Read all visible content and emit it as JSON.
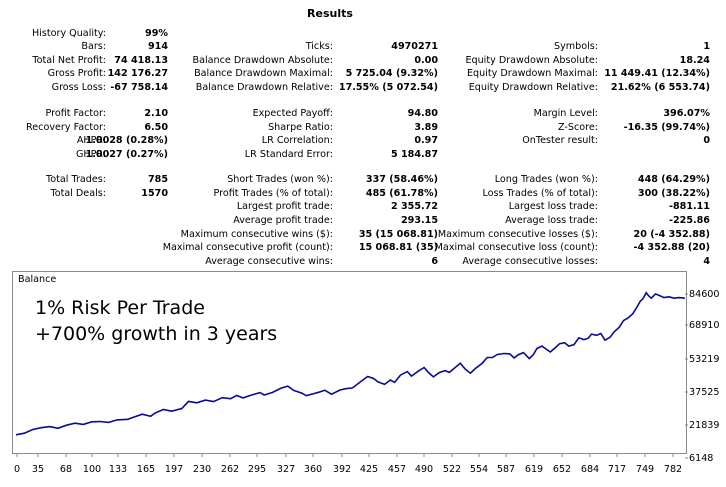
{
  "report": {
    "title": "Results",
    "col1": [
      {
        "label": "History Quality:",
        "value": "99%"
      },
      {
        "label": "Bars:",
        "value": "914"
      },
      {
        "label": "Total Net Profit:",
        "value": "74 418.13"
      },
      {
        "label": "Gross Profit:",
        "value": "142 176.27"
      },
      {
        "label": "Gross Loss:",
        "value": "-67 758.14"
      },
      {
        "label": "Profit Factor:",
        "value": "2.10"
      },
      {
        "label": "Recovery Factor:",
        "value": "6.50"
      },
      {
        "label": "AHPR:",
        "value": "1.0028 (0.28%)"
      },
      {
        "label": "GHPR:",
        "value": "1.0027 (0.27%)"
      },
      {
        "label": "Total Trades:",
        "value": "785"
      },
      {
        "label": "Total Deals:",
        "value": "1570"
      }
    ],
    "col2": [
      {
        "label": "Ticks:",
        "value": "4970271"
      },
      {
        "label": "Balance Drawdown Absolute:",
        "value": "0.00"
      },
      {
        "label": "Balance Drawdown Maximal:",
        "value": "5 725.04 (9.32%)"
      },
      {
        "label": "Balance Drawdown Relative:",
        "value": "17.55% (5 072.54)"
      },
      {
        "label": "Expected Payoff:",
        "value": "94.80"
      },
      {
        "label": "Sharpe Ratio:",
        "value": "3.89"
      },
      {
        "label": "LR Correlation:",
        "value": "0.97"
      },
      {
        "label": "LR Standard Error:",
        "value": "5 184.87"
      },
      {
        "label": "Short Trades (won %):",
        "value": "337 (58.46%)"
      },
      {
        "label": "Profit Trades (% of total):",
        "value": "485 (61.78%)"
      },
      {
        "label": "Largest profit trade:",
        "value": "2 355.72"
      },
      {
        "label": "Average profit trade:",
        "value": "293.15"
      },
      {
        "label": "Maximum consecutive wins ($):",
        "value": "35 (15 068.81)"
      },
      {
        "label": "Maximal consecutive profit (count):",
        "value": "15 068.81 (35)"
      },
      {
        "label": "Average consecutive wins:",
        "value": "6"
      }
    ],
    "col3": [
      {
        "label": "Symbols:",
        "value": "1"
      },
      {
        "label": "Equity Drawdown Absolute:",
        "value": "18.24"
      },
      {
        "label": "Equity Drawdown Maximal:",
        "value": "11 449.41 (12.34%)"
      },
      {
        "label": "Equity Drawdown Relative:",
        "value": "21.62% (6 553.74)"
      },
      {
        "label": "Margin Level:",
        "value": "396.07%"
      },
      {
        "label": "Z-Score:",
        "value": "-16.35 (99.74%)"
      },
      {
        "label": "OnTester result:",
        "value": "0"
      },
      {
        "label": "Long Trades (won %):",
        "value": "448 (64.29%)"
      },
      {
        "label": "Loss Trades (% of total):",
        "value": "300 (38.22%)"
      },
      {
        "label": "Largest loss trade:",
        "value": "-881.11"
      },
      {
        "label": "Average loss trade:",
        "value": "-225.86"
      },
      {
        "label": "Maximum consecutive losses ($):",
        "value": "20 (-4 352.88)"
      },
      {
        "label": "Maximal consecutive loss (count):",
        "value": "-4 352.88 (20)"
      },
      {
        "label": "Average consecutive losses:",
        "value": "4"
      }
    ]
  },
  "overlay": {
    "line1": "1% Risk Per Trade",
    "line2": "+700% growth in 3 years"
  },
  "chart_data": {
    "type": "line",
    "title": "Balance",
    "color": "#0a0a96",
    "x_ticks": [
      "0",
      "35",
      "68",
      "100",
      "133",
      "165",
      "197",
      "230",
      "262",
      "295",
      "327",
      "360",
      "392",
      "425",
      "457",
      "490",
      "522",
      "554",
      "587",
      "619",
      "652",
      "684",
      "717",
      "749",
      "782"
    ],
    "y_ticks": [
      "84600",
      "68910",
      "53219",
      "37525",
      "21839",
      "6148"
    ],
    "ylim": [
      6148,
      84600
    ],
    "xlim": [
      0,
      800
    ],
    "series": [
      {
        "points": [
          [
            0,
            14400
          ],
          [
            10,
            15200
          ],
          [
            20,
            17100
          ],
          [
            30,
            18000
          ],
          [
            40,
            18600
          ],
          [
            50,
            17700
          ],
          [
            60,
            19300
          ],
          [
            70,
            20300
          ],
          [
            80,
            19700
          ],
          [
            90,
            21000
          ],
          [
            100,
            21200
          ],
          [
            110,
            20700
          ],
          [
            120,
            22000
          ],
          [
            133,
            22300
          ],
          [
            140,
            23400
          ],
          [
            150,
            24900
          ],
          [
            160,
            23800
          ],
          [
            165,
            25400
          ],
          [
            175,
            27300
          ],
          [
            185,
            26400
          ],
          [
            197,
            27800
          ],
          [
            205,
            31400
          ],
          [
            215,
            30700
          ],
          [
            225,
            32100
          ],
          [
            235,
            31300
          ],
          [
            245,
            33300
          ],
          [
            255,
            32800
          ],
          [
            262,
            34400
          ],
          [
            270,
            33200
          ],
          [
            280,
            34700
          ],
          [
            290,
            35900
          ],
          [
            295,
            34700
          ],
          [
            305,
            36000
          ],
          [
            315,
            38200
          ],
          [
            323,
            39200
          ],
          [
            330,
            37000
          ],
          [
            340,
            35600
          ],
          [
            345,
            34300
          ],
          [
            355,
            35500
          ],
          [
            360,
            36100
          ],
          [
            367,
            37100
          ],
          [
            375,
            35100
          ],
          [
            385,
            37200
          ],
          [
            392,
            37900
          ],
          [
            400,
            38300
          ],
          [
            410,
            41600
          ],
          [
            418,
            44100
          ],
          [
            425,
            43100
          ],
          [
            430,
            41400
          ],
          [
            438,
            40100
          ],
          [
            445,
            42300
          ],
          [
            450,
            41100
          ],
          [
            457,
            44800
          ],
          [
            465,
            46600
          ],
          [
            470,
            44300
          ],
          [
            478,
            46800
          ],
          [
            485,
            48700
          ],
          [
            490,
            46200
          ],
          [
            496,
            43900
          ],
          [
            503,
            46100
          ],
          [
            510,
            47100
          ],
          [
            515,
            46200
          ],
          [
            522,
            48700
          ],
          [
            528,
            50800
          ],
          [
            534,
            47800
          ],
          [
            540,
            45800
          ],
          [
            546,
            48200
          ],
          [
            554,
            50800
          ],
          [
            560,
            53800
          ],
          [
            566,
            53800
          ],
          [
            572,
            55300
          ],
          [
            580,
            55800
          ],
          [
            587,
            55600
          ],
          [
            592,
            53500
          ],
          [
            597,
            55200
          ],
          [
            603,
            56300
          ],
          [
            610,
            53200
          ],
          [
            615,
            55300
          ],
          [
            619,
            58300
          ],
          [
            625,
            59600
          ],
          [
            630,
            58100
          ],
          [
            635,
            56600
          ],
          [
            641,
            58800
          ],
          [
            646,
            60800
          ],
          [
            652,
            61300
          ],
          [
            657,
            59600
          ],
          [
            663,
            60300
          ],
          [
            669,
            63800
          ],
          [
            675,
            62900
          ],
          [
            680,
            63600
          ],
          [
            684,
            65700
          ],
          [
            690,
            65100
          ],
          [
            695,
            66000
          ],
          [
            700,
            62600
          ],
          [
            706,
            64100
          ],
          [
            711,
            66900
          ],
          [
            717,
            69200
          ],
          [
            722,
            72600
          ],
          [
            727,
            73800
          ],
          [
            733,
            76100
          ],
          [
            738,
            79500
          ],
          [
            742,
            82500
          ],
          [
            745,
            83700
          ],
          [
            749,
            86800
          ],
          [
            752,
            85100
          ],
          [
            755,
            84000
          ],
          [
            760,
            86200
          ],
          [
            765,
            85300
          ],
          [
            770,
            84300
          ],
          [
            776,
            84700
          ],
          [
            782,
            84000
          ],
          [
            788,
            84300
          ],
          [
            795,
            84000
          ]
        ]
      }
    ]
  }
}
